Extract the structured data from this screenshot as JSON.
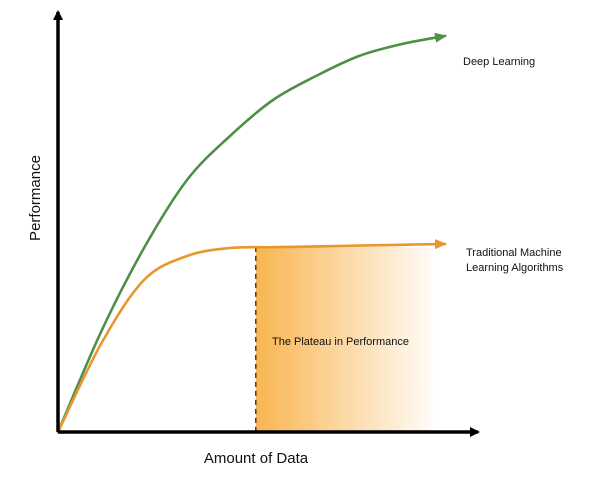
{
  "chart_data": {
    "type": "line",
    "xlabel": "Amount of Data",
    "ylabel": "Performance",
    "grid": false,
    "series": [
      {
        "name": "Deep Learning",
        "color": "#4e8f46",
        "x": [
          0,
          0.1,
          0.2,
          0.3,
          0.4,
          0.5,
          0.6,
          0.7,
          0.8,
          0.9
        ],
        "y": [
          0,
          0.25,
          0.46,
          0.63,
          0.74,
          0.83,
          0.89,
          0.94,
          0.97,
          0.99
        ]
      },
      {
        "name": "Traditional Machine Learning Algorithms",
        "name_lines": [
          "Traditional Machine",
          "Learning Algorithms"
        ],
        "color": "#e8962e",
        "x": [
          0,
          0.1,
          0.2,
          0.3,
          0.4,
          0.5,
          0.6,
          0.7,
          0.8,
          0.9
        ],
        "y": [
          0,
          0.22,
          0.38,
          0.44,
          0.46,
          0.462,
          0.464,
          0.466,
          0.468,
          0.47
        ]
      }
    ],
    "annotations": [
      {
        "text": "The Plateau in Performance",
        "x_start": 0.46,
        "x_end": 0.87
      }
    ]
  }
}
